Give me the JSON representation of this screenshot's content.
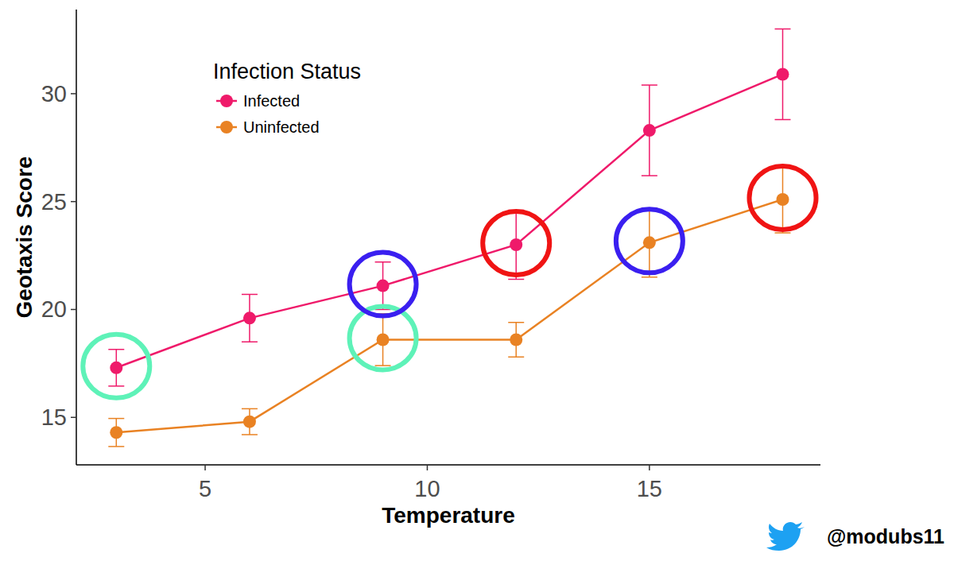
{
  "chart_data": {
    "type": "line",
    "x_label": "Temperature",
    "y_label": "Geotaxis Score",
    "legend_title": "Infection Status",
    "legend": "top-left",
    "grid": false,
    "x": [
      3,
      6,
      9,
      12,
      15,
      18
    ],
    "xlim": [
      2.1,
      18.85
    ],
    "xticks": [
      5,
      10,
      15
    ],
    "ylim": [
      12.8,
      33.9
    ],
    "yticks": [
      15,
      20,
      25,
      30
    ],
    "series": [
      {
        "name": "Infected",
        "color": "#ef1a6a",
        "marker": "circle",
        "values": [
          17.3,
          19.6,
          21.1,
          23.0,
          28.3,
          30.9
        ],
        "errors": [
          0.85,
          1.1,
          1.1,
          1.6,
          2.1,
          2.1
        ]
      },
      {
        "name": "Uninfected",
        "color": "#e98223",
        "marker": "circle",
        "values": [
          14.3,
          14.8,
          18.6,
          18.6,
          23.1,
          25.1
        ],
        "errors": [
          0.65,
          0.6,
          1.2,
          0.8,
          1.6,
          1.55
        ]
      }
    ],
    "highlights": [
      {
        "color": "#5ef2b8",
        "points": [
          [
            0,
            0
          ],
          [
            1,
            2
          ]
        ]
      },
      {
        "color": "#3a1ff0",
        "points": [
          [
            0,
            2
          ],
          [
            1,
            4
          ]
        ]
      },
      {
        "color": "#f01414",
        "points": [
          [
            0,
            3
          ],
          [
            1,
            5
          ]
        ]
      }
    ],
    "credit": "@modubs11"
  }
}
